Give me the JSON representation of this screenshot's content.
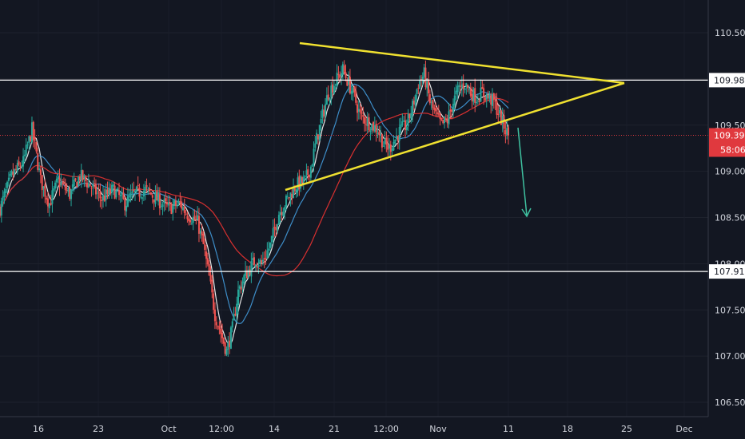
{
  "chart_data": {
    "type": "candlestick",
    "y_axis": {
      "ticks": [
        "110.500",
        "110.000",
        "109.500",
        "109.000",
        "108.500",
        "108.000",
        "107.500",
        "107.000",
        "106.500"
      ],
      "tick_values": [
        110.5,
        110.0,
        109.5,
        109.0,
        108.5,
        108.0,
        107.5,
        107.0,
        106.5
      ],
      "range": [
        106.35,
        110.72
      ]
    },
    "x_axis": {
      "ticks": [
        "16",
        "23",
        "Oct",
        "12:00",
        "14",
        "21",
        "12:00",
        "Nov",
        "11",
        "18",
        "25",
        "Dec"
      ]
    },
    "levels": [
      {
        "value": 109.987,
        "label": "109.987",
        "color": "#ffffff"
      },
      {
        "value": 107.916,
        "label": "107.916",
        "color": "#ffffff"
      }
    ],
    "current_price": {
      "value": 109.39,
      "label": "109.390",
      "countdown": "58:06",
      "color": "#e0393e"
    },
    "triangle": {
      "color": "#f0e130",
      "upper_line": [
        [
          0,
          110.39
        ],
        [
          0.5,
          110.02
        ]
      ],
      "lower_line": [
        [
          0,
          108.81
        ],
        [
          0.5,
          110.02
        ]
      ]
    },
    "projection_arrow": {
      "color": "#3fc1a0",
      "from": 109.43,
      "to": 108.55
    },
    "candles": {
      "bull_color": "#26a69a",
      "bear_color": "#ef5350",
      "anchors": [
        [
          0,
          108.6
        ],
        [
          8,
          108.95
        ],
        [
          16,
          109.1
        ],
        [
          22,
          109.45
        ],
        [
          28,
          108.9
        ],
        [
          34,
          108.65
        ],
        [
          40,
          108.9
        ],
        [
          48,
          108.75
        ],
        [
          55,
          108.95
        ],
        [
          62,
          108.85
        ],
        [
          70,
          108.7
        ],
        [
          78,
          108.8
        ],
        [
          86,
          108.65
        ],
        [
          92,
          108.75
        ],
        [
          100,
          108.8
        ],
        [
          108,
          108.7
        ],
        [
          116,
          108.6
        ],
        [
          124,
          108.65
        ],
        [
          128,
          108.55
        ],
        [
          132,
          108.5
        ],
        [
          136,
          108.45
        ],
        [
          140,
          108.2
        ],
        [
          144,
          107.85
        ],
        [
          148,
          107.45
        ],
        [
          152,
          107.25
        ],
        [
          156,
          107.05
        ],
        [
          160,
          107.3
        ],
        [
          164,
          107.7
        ],
        [
          168,
          107.85
        ],
        [
          172,
          107.95
        ],
        [
          176,
          108.05
        ],
        [
          180,
          108.0
        ],
        [
          186,
          108.2
        ],
        [
          192,
          108.55
        ],
        [
          198,
          108.7
        ],
        [
          204,
          108.85
        ],
        [
          210,
          108.9
        ],
        [
          214,
          109.05
        ],
        [
          218,
          109.35
        ],
        [
          222,
          109.6
        ],
        [
          226,
          109.85
        ],
        [
          232,
          110.0
        ],
        [
          236,
          110.1
        ],
        [
          240,
          109.95
        ],
        [
          244,
          109.8
        ],
        [
          248,
          109.6
        ],
        [
          252,
          109.55
        ],
        [
          256,
          109.5
        ],
        [
          260,
          109.45
        ],
        [
          264,
          109.3
        ],
        [
          268,
          109.25
        ],
        [
          272,
          109.35
        ],
        [
          276,
          109.45
        ],
        [
          280,
          109.5
        ],
        [
          284,
          109.7
        ],
        [
          288,
          109.95
        ],
        [
          292,
          110.05
        ],
        [
          296,
          109.75
        ],
        [
          300,
          109.6
        ],
        [
          304,
          109.5
        ],
        [
          308,
          109.55
        ],
        [
          312,
          109.75
        ],
        [
          316,
          109.9
        ],
        [
          320,
          109.95
        ],
        [
          324,
          109.85
        ],
        [
          328,
          109.8
        ],
        [
          332,
          109.85
        ],
        [
          336,
          109.8
        ],
        [
          340,
          109.75
        ],
        [
          344,
          109.6
        ],
        [
          348,
          109.45
        ],
        [
          350,
          109.39
        ]
      ]
    },
    "moving_averages": [
      {
        "color": "#e8e8e8",
        "period": 6
      },
      {
        "color": "#3e8ec9",
        "period": 20
      },
      {
        "color": "#d83030",
        "period": 60
      }
    ]
  }
}
